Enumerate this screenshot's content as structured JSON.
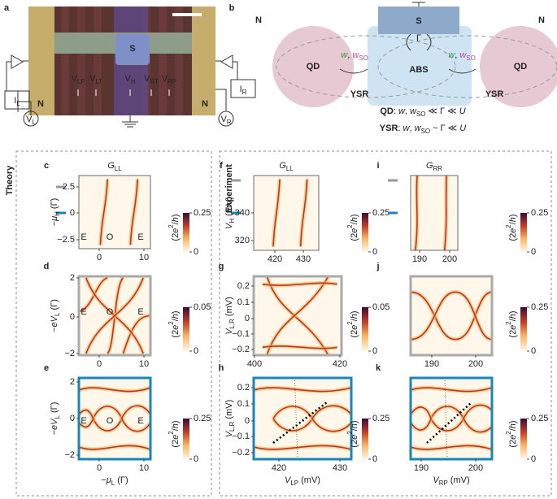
{
  "schematic_a": {
    "letter": "a",
    "island": "S",
    "leads": [
      "N",
      "N"
    ],
    "gates": [
      [
        "V",
        {
          "t": "LP",
          "pos": "sub"
        }
      ],
      [
        "V",
        {
          "t": "LT",
          "pos": "sub"
        }
      ],
      [
        "V",
        {
          "t": "H",
          "pos": "sub"
        }
      ],
      [
        "V",
        {
          "t": "RT",
          "pos": "sub"
        }
      ],
      [
        "V",
        {
          "t": "RP",
          "pos": "sub"
        }
      ]
    ],
    "currents": [
      [
        "I",
        {
          "t": "L",
          "pos": "sub"
        }
      ],
      [
        "I",
        {
          "t": "R",
          "pos": "sub"
        }
      ]
    ],
    "voltages": [
      [
        "V",
        {
          "t": "L",
          "pos": "sub"
        }
      ],
      [
        "V",
        {
          "t": "R",
          "pos": "sub"
        }
      ]
    ]
  },
  "schematic_b": {
    "letter": "b",
    "leads": [
      "N",
      "N"
    ],
    "superconductor": "S",
    "dots": [
      "QD",
      "QD"
    ],
    "abs": "ABS",
    "coupling": "Γ",
    "tunnel": [
      [
        {
          "t": "w",
          "color": "#2e9a48",
          "style": "italic"
        },
        ", ",
        {
          "t": "w",
          "color": "#c0459a",
          "style": "italic"
        },
        {
          "t": "SO",
          "pos": "sub",
          "color": "#c0459a"
        }
      ],
      [
        {
          "t": "w",
          "color": "#2e9a48",
          "style": "italic"
        },
        ", ",
        {
          "t": "w",
          "color": "#c0459a",
          "style": "italic"
        },
        {
          "t": "SO",
          "pos": "sub",
          "color": "#c0459a"
        }
      ]
    ],
    "ysr": [
      "YSR",
      "YSR"
    ],
    "regimes": [
      [
        {
          "t": "QD",
          "weight": "bold"
        },
        ": ",
        {
          "t": "w",
          "style": "italic"
        },
        ", ",
        {
          "t": "w",
          "style": "italic"
        },
        {
          "t": "SO",
          "pos": "sub"
        },
        " ≪ Γ ≪ ",
        {
          "t": "U",
          "style": "italic"
        }
      ],
      [
        {
          "t": "YSR",
          "weight": "bold"
        },
        ": ",
        {
          "t": "w",
          "style": "italic"
        },
        ", ",
        {
          "t": "w",
          "style": "italic"
        },
        {
          "t": "SO",
          "pos": "sub"
        },
        " ~ Γ ≪ ",
        {
          "t": "U",
          "style": "italic"
        }
      ]
    ]
  },
  "sections": [
    "Theory",
    "Experiment"
  ],
  "panels": [
    {
      "letter": "c",
      "title": [
        {
          "t": "G",
          "style": "italic"
        },
        {
          "t": "LL",
          "pos": "sub"
        }
      ],
      "ylabel": [
        "−",
        {
          "t": "μ",
          "style": "italic"
        },
        {
          "t": "H",
          "pos": "sub"
        },
        " (Γ)"
      ],
      "yticks": [
        2.5,
        0,
        "−2.5"
      ],
      "xticks": [
        0,
        10
      ],
      "cbar_label": [
        "(2",
        {
          "t": "e",
          "style": "italic"
        },
        {
          "t": "2",
          "pos": "sup"
        },
        "/",
        {
          "t": "h",
          "style": "italic"
        },
        ")"
      ],
      "cbar_ticks": [
        0.25,
        0
      ],
      "annotations": [
        "E",
        "O",
        "E"
      ]
    },
    {
      "letter": "d",
      "ylabel": [
        "−",
        {
          "t": "eV",
          "style": "italic"
        },
        {
          "t": "L",
          "pos": "sub"
        },
        " (Γ)"
      ],
      "yticks": [
        2,
        0,
        "−2"
      ],
      "xticks": [
        0,
        10
      ],
      "cbar_label": [
        "(2",
        {
          "t": "e",
          "style": "italic"
        },
        {
          "t": "2",
          "pos": "sup"
        },
        "/",
        {
          "t": "h",
          "style": "italic"
        },
        ")"
      ],
      "cbar_ticks": [
        0.05,
        0
      ],
      "annotations": [
        "E",
        "O",
        "E"
      ]
    },
    {
      "letter": "e",
      "ylabel": [
        "−",
        {
          "t": "eV",
          "style": "italic"
        },
        {
          "t": "L",
          "pos": "sub"
        },
        " (Γ)"
      ],
      "xlabel": [
        "−",
        {
          "t": "μ",
          "style": "italic"
        },
        {
          "t": "L",
          "pos": "sub"
        },
        " (Γ)"
      ],
      "yticks": [
        2,
        0,
        "−2"
      ],
      "xticks": [
        0,
        10
      ],
      "cbar_label": [
        "(2",
        {
          "t": "e",
          "style": "italic"
        },
        {
          "t": "2",
          "pos": "sup"
        },
        "/",
        {
          "t": "h",
          "style": "italic"
        },
        ")"
      ],
      "cbar_ticks": [
        0.25,
        0
      ],
      "annotations": [
        "E",
        "O",
        "E"
      ]
    },
    {
      "letter": "f",
      "title": [
        {
          "t": "G",
          "style": "italic"
        },
        {
          "t": "LL",
          "pos": "sub"
        }
      ],
      "ylabel": [
        {
          "t": "V",
          "style": "italic"
        },
        {
          "t": "H",
          "pos": "sub"
        },
        " (mV)"
      ],
      "yticks": [
        340,
        320
      ],
      "xticks": [
        420,
        430
      ],
      "cbar_label": [
        "(2",
        {
          "t": "e",
          "style": "italic"
        },
        {
          "t": "2",
          "pos": "sup"
        },
        "/",
        {
          "t": "h",
          "style": "italic"
        },
        ")"
      ],
      "cbar_ticks": [
        0.25,
        0
      ]
    },
    {
      "letter": "g",
      "ylabel": [
        {
          "t": "V",
          "style": "italic"
        },
        {
          "t": "L,R",
          "pos": "sub"
        },
        " (mV)"
      ],
      "yticks": [
        0.2,
        0.1,
        0,
        "−0.1",
        "−0.2"
      ],
      "xticks": [
        400,
        420
      ],
      "cbar_label": [
        "(2",
        {
          "t": "e",
          "style": "italic"
        },
        {
          "t": "2",
          "pos": "sup"
        },
        "/",
        {
          "t": "h",
          "style": "italic"
        },
        ")"
      ],
      "cbar_ticks": [
        0.05,
        0
      ]
    },
    {
      "letter": "h",
      "ylabel": [
        {
          "t": "V",
          "style": "italic"
        },
        {
          "t": "L,R",
          "pos": "sub"
        },
        " (mV)"
      ],
      "xlabel": [
        {
          "t": "V",
          "style": "italic"
        },
        {
          "t": "LP",
          "pos": "sub"
        },
        " (mV)"
      ],
      "yticks": [
        0.2,
        0.1,
        0,
        "−0.1",
        "−0.2"
      ],
      "xticks": [
        420,
        430
      ],
      "cbar_label": [
        "(2",
        {
          "t": "e",
          "style": "italic"
        },
        {
          "t": "2",
          "pos": "sup"
        },
        "/",
        {
          "t": "h",
          "style": "italic"
        },
        ")"
      ],
      "cbar_ticks": [
        0.25,
        0
      ]
    },
    {
      "letter": "i",
      "title": [
        {
          "t": "G",
          "style": "italic"
        },
        {
          "t": "RR",
          "pos": "sub"
        }
      ],
      "xticks": [
        190,
        200
      ],
      "cbar_label": [
        "(2",
        {
          "t": "e",
          "style": "italic"
        },
        {
          "t": "2",
          "pos": "sup"
        },
        "/",
        {
          "t": "h",
          "style": "italic"
        },
        ")"
      ],
      "cbar_ticks": [
        0.25,
        0
      ]
    },
    {
      "letter": "j",
      "xticks": [
        190,
        200
      ],
      "cbar_label": [
        "(2",
        {
          "t": "e",
          "style": "italic"
        },
        {
          "t": "2",
          "pos": "sup"
        },
        "/",
        {
          "t": "h",
          "style": "italic"
        },
        ")"
      ],
      "cbar_ticks": [
        0.25,
        0
      ]
    },
    {
      "letter": "k",
      "xlabel": [
        {
          "t": "V",
          "style": "italic"
        },
        {
          "t": "RP",
          "pos": "sub"
        },
        " (mV)"
      ],
      "xticks": [
        190,
        200
      ],
      "cbar_label": [
        "(2",
        {
          "t": "e",
          "style": "italic"
        },
        {
          "t": "2",
          "pos": "sup"
        },
        "/",
        {
          "t": "h",
          "style": "italic"
        },
        ")"
      ],
      "cbar_ticks": [
        0.25,
        0
      ]
    }
  ]
}
